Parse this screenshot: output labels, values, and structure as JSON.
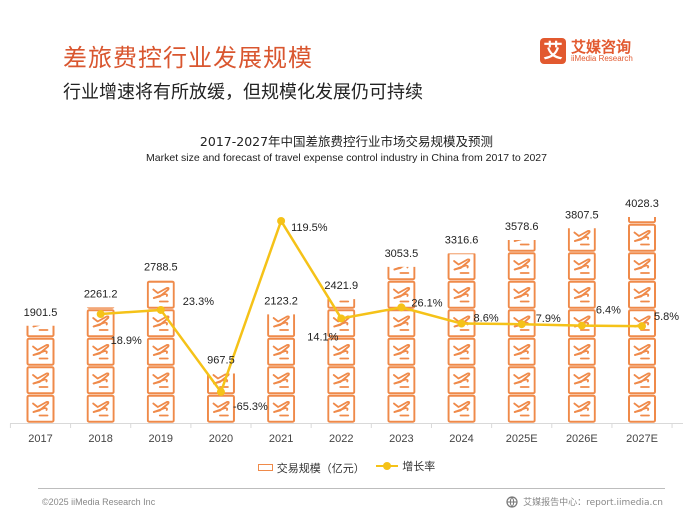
{
  "header": {
    "title": "差旅费控行业发展规模",
    "subtitle": "行业增速将有所放缓，但规模化发展仍可持续"
  },
  "logo": {
    "mark": "艾",
    "name_cn": "艾媒咨询",
    "name_en": "iiMedia Research"
  },
  "footer": {
    "copyright": "©2025  iiMedia Research  Inc",
    "report_center": "艾媒报告中心：report.iimedia.cn",
    "icon": "globe-icon"
  },
  "colors": {
    "accent": "#d9562f",
    "bar": "#ef8a4a",
    "line": "#f5c218"
  },
  "chart_data": {
    "type": "bar+line",
    "title": "2017-2027年中国差旅费控行业市场交易规模及预测",
    "subtitle": "Market size and forecast of travel expense control industry  in China from 2017 to 2027",
    "categories": [
      "2017",
      "2018",
      "2019",
      "2020",
      "2021",
      "2022",
      "2023",
      "2024",
      "2025E",
      "2026E",
      "2027E"
    ],
    "series": [
      {
        "name": "交易规模（亿元）",
        "type": "bar",
        "axis": "left",
        "values": [
          1901.5,
          2261.2,
          2788.5,
          967.5,
          2123.2,
          2421.9,
          3053.5,
          3316.6,
          3578.6,
          3807.5,
          4028.3
        ],
        "labels": [
          "1901.5",
          "2261.2",
          "2788.5",
          "967.5",
          "2123.2",
          "2421.9",
          "3053.5",
          "3316.6",
          "3578.6",
          "3807.5",
          "4028.3"
        ]
      },
      {
        "name": "增长率",
        "type": "line",
        "axis": "right",
        "values": [
          null,
          18.9,
          23.3,
          -65.3,
          119.5,
          14.1,
          26.1,
          8.6,
          7.9,
          6.4,
          5.8
        ],
        "labels": [
          "",
          "18.9%",
          "23.3%",
          "-65.3%",
          "119.5%",
          "14.1%",
          "26.1%",
          "8.6%",
          "7.9%",
          "6.4%",
          "5.8%"
        ]
      }
    ],
    "ylim_left": [
      0,
      4100
    ],
    "ylim_right": [
      -100,
      130
    ],
    "legend": [
      "交易规模（亿元）",
      "增长率"
    ],
    "legend_position": "bottom",
    "grid": false
  }
}
